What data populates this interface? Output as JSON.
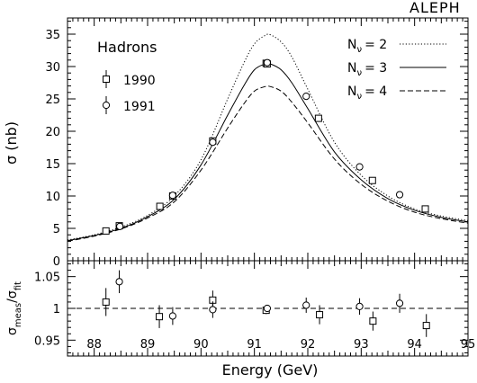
{
  "brand": "ALEPH",
  "chart_data": [
    {
      "type": "line",
      "panel": "main",
      "title": "",
      "annotation": "Hadrons",
      "xlabel": "Energy (GeV)",
      "ylabel": "σ (nb)",
      "xlim": [
        87.5,
        95
      ],
      "ylim": [
        0,
        37.5
      ],
      "y_ticks": [
        0,
        5,
        10,
        15,
        20,
        25,
        30,
        35
      ],
      "x_ticks": [
        88,
        89,
        90,
        91,
        92,
        93,
        94,
        95
      ],
      "grid": false,
      "legend_position": "top-right",
      "series": [
        {
          "name": "Nν = 2",
          "label_base": "N",
          "label_sub": "ν",
          "label_value": "= 2",
          "style": "dotted",
          "x": [
            87.5,
            88.0,
            88.5,
            89.0,
            89.5,
            90.0,
            90.5,
            90.8,
            91.0,
            91.2,
            91.3,
            91.5,
            91.7,
            92.0,
            92.5,
            93.0,
            93.5,
            94.0,
            94.5,
            95.0
          ],
          "y": [
            3.2,
            4.0,
            5.2,
            7.0,
            10.0,
            15.6,
            25.0,
            30.5,
            33.5,
            34.8,
            34.9,
            33.8,
            31.5,
            26.5,
            18.3,
            13.2,
            10.0,
            8.0,
            6.9,
            6.2
          ]
        },
        {
          "name": "Nν = 3",
          "label_base": "N",
          "label_sub": "ν",
          "label_value": "= 3",
          "style": "solid",
          "x": [
            87.5,
            88.0,
            88.5,
            89.0,
            89.5,
            90.0,
            90.5,
            90.8,
            91.0,
            91.2,
            91.3,
            91.5,
            91.7,
            92.0,
            92.5,
            93.0,
            93.5,
            94.0,
            94.5,
            95.0
          ],
          "y": [
            3.1,
            3.9,
            5.0,
            6.8,
            9.5,
            14.8,
            22.5,
            27.0,
            29.5,
            30.4,
            30.4,
            29.5,
            27.5,
            23.5,
            16.8,
            12.5,
            9.6,
            7.8,
            6.7,
            6.0
          ]
        },
        {
          "name": "Nν = 4",
          "label_base": "N",
          "label_sub": "ν",
          "label_value": "= 4",
          "style": "dashed",
          "x": [
            87.5,
            88.0,
            88.5,
            89.0,
            89.5,
            90.0,
            90.5,
            90.8,
            91.0,
            91.2,
            91.3,
            91.5,
            91.7,
            92.0,
            92.5,
            93.0,
            93.5,
            94.0,
            94.5,
            95.0
          ],
          "y": [
            3.0,
            3.8,
            4.9,
            6.6,
            9.1,
            14.0,
            20.5,
            24.2,
            26.2,
            26.9,
            26.9,
            26.2,
            24.5,
            21.3,
            15.7,
            11.8,
            9.2,
            7.5,
            6.5,
            5.8
          ]
        }
      ],
      "points": [
        {
          "name": "1990",
          "marker": "square",
          "x": [
            88.22,
            88.47,
            89.23,
            89.47,
            90.22,
            91.22,
            91.24,
            92.2,
            93.21,
            94.2
          ],
          "y": [
            4.6,
            5.4,
            8.4,
            10.0,
            18.5,
            30.5,
            30.4,
            22.0,
            12.4,
            8.0
          ]
        },
        {
          "name": "1991",
          "marker": "circle",
          "x": [
            88.48,
            89.47,
            90.22,
            91.24,
            91.97,
            92.97,
            93.72
          ],
          "y": [
            5.3,
            10.1,
            18.3,
            30.6,
            25.4,
            14.5,
            10.2
          ]
        }
      ]
    },
    {
      "type": "scatter",
      "panel": "ratio",
      "xlabel": "Energy (GeV)",
      "ylabel": "σmeas/σfit",
      "ylabel_parts": [
        "σ",
        "meas",
        "/σ",
        "fit"
      ],
      "xlim": [
        87.5,
        95
      ],
      "ylim": [
        0.925,
        1.075
      ],
      "y_ticks": [
        0.95,
        1,
        1.05
      ],
      "y_tick_labels": [
        "0.95",
        "1",
        "1.05"
      ],
      "x_ticks": [
        88,
        89,
        90,
        91,
        92,
        93,
        94,
        95
      ],
      "reference_line": 1.0,
      "series": [
        {
          "name": "1990",
          "marker": "square",
          "x": [
            88.22,
            89.22,
            90.22,
            91.22,
            92.22,
            93.22,
            94.22
          ],
          "y": [
            1.01,
            0.987,
            1.013,
            0.997,
            0.99,
            0.98,
            0.973
          ],
          "err": [
            0.022,
            0.018,
            0.015,
            0.006,
            0.015,
            0.015,
            0.018
          ]
        },
        {
          "name": "1991",
          "marker": "circle",
          "x": [
            88.47,
            89.47,
            90.22,
            91.24,
            91.97,
            92.97,
            93.72
          ],
          "y": [
            1.042,
            0.988,
            0.998,
            1.0,
            1.005,
            1.003,
            1.008
          ],
          "err": [
            0.018,
            0.014,
            0.013,
            0.005,
            0.012,
            0.013,
            0.015
          ]
        }
      ]
    }
  ]
}
